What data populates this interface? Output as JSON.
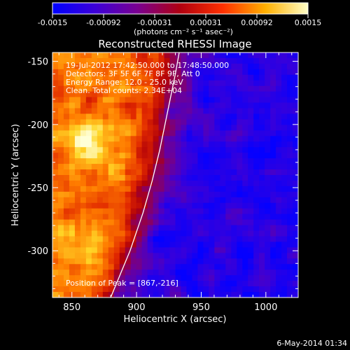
{
  "chart_data": {
    "type": "heatmap",
    "title": "Reconstructed RHESSI Image",
    "xlabel": "Heliocentric X (arcsec)",
    "ylabel": "Heliocentric Y (arcsec)",
    "xlim": [
      835,
      1025
    ],
    "ylim": [
      -337,
      -143
    ],
    "x_ticks": [
      850,
      900,
      950,
      1000
    ],
    "y_ticks": [
      -150,
      -200,
      -250,
      -300
    ],
    "colorbar": {
      "range": [
        -0.0015,
        0.0015
      ],
      "ticks": [
        "-0.0015",
        "-0.00092",
        "-0.00031",
        "0.00031",
        "0.00092",
        "0.0015"
      ],
      "unit_label": "(photons cm⁻² s⁻¹ asec⁻²)",
      "colors": [
        "#0000ff",
        "#3c00d8",
        "#7a0090",
        "#b00010",
        "#ff3000",
        "#ffb000",
        "#ffffc8"
      ]
    },
    "annotations": [
      "19-Jul-2012 17:42:50.000 to 17:48:50.000",
      "Detectors: 3F 5F 6F 7F 8F 9F, Att 0",
      "Energy Range: 12.0 - 25.0 keV",
      "Clean.  Total counts: 2.34E+04"
    ],
    "peak_label": "Position of Peak = [867,-216]",
    "peak": [
      867,
      -216
    ],
    "limb_curve": [
      [
        880,
        -337
      ],
      [
        895,
        -300
      ],
      [
        905,
        -270
      ],
      [
        912,
        -245
      ],
      [
        918,
        -220
      ],
      [
        924,
        -190
      ],
      [
        930,
        -160
      ],
      [
        933,
        -143
      ]
    ],
    "grid": false,
    "legend": "none"
  },
  "footer": {
    "timestamp": "6-May-2014 01:34"
  }
}
